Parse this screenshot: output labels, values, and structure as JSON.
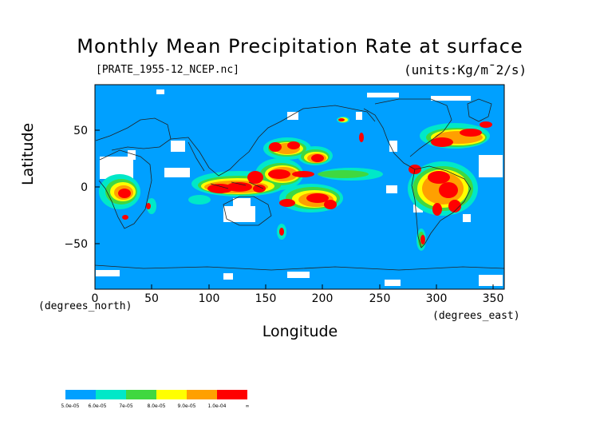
{
  "title": "Monthly Mean Precipitation Rate at surface",
  "file_label": "[PRATE_1955-12_NCEP.nc]",
  "units_label": "(units:Kg/m¯2/s)",
  "x_axis": {
    "label": "Longitude",
    "unit_note": "(degrees_east)",
    "ticks": [
      "0",
      "50",
      "100",
      "150",
      "200",
      "250",
      "300",
      "350"
    ]
  },
  "y_axis": {
    "label": "Latitude",
    "unit_note": "(degrees_north)",
    "ticks": [
      "50",
      "0",
      "−50"
    ]
  },
  "legend": {
    "labels": [
      "5.0e-05",
      "6.0e-05",
      "7e-05",
      "8.0e-05",
      "9.0e-05",
      "1.0e-04",
      "∞"
    ],
    "colors": [
      "#00a0ff",
      "#00e8c8",
      "#40d840",
      "#ffff00",
      "#ffa000",
      "#ff0000"
    ]
  },
  "colors": {
    "background": "#00a0ff",
    "missing": "#ffffff",
    "low": "#00e8c8",
    "mid": "#40d840",
    "mid_high": "#ffff00",
    "high": "#ffa000",
    "max": "#ff0000"
  }
}
